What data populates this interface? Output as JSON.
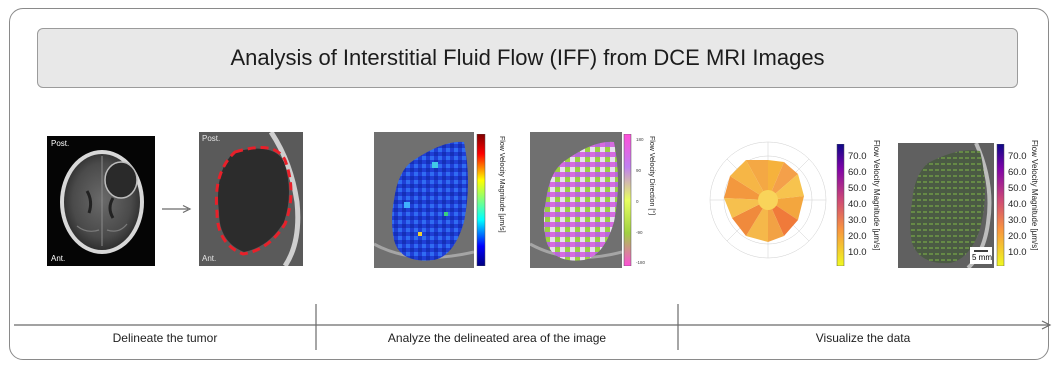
{
  "title": "Analysis of Interstitial Fluid Flow (IFF) from DCE MRI Images",
  "stages": [
    {
      "label": "Delineate the tumor"
    },
    {
      "label": "Analyze the delineated area of the image"
    },
    {
      "label": "Visualize the data"
    }
  ],
  "panels": {
    "mri": {
      "label_top": "Post.",
      "label_bottom": "Ant."
    },
    "zoom": {
      "label_top": "Post.",
      "label_bottom": "Ant."
    },
    "magnitude": {
      "colorbar_title": "Flow Velocity Magnitude [μm/s]"
    },
    "direction": {
      "colorbar_title": "Flow Velocity Direction [°]",
      "ticks": [
        "180",
        "90",
        "0",
        "-90",
        "-180"
      ]
    },
    "rose": {
      "colorbar_title": "Flow Velocity Magnitude [μm/s]",
      "ticks": [
        "70.0",
        "60.0",
        "50.0",
        "40.0",
        "30.0",
        "20.0",
        "10.0"
      ]
    },
    "overlay": {
      "colorbar_title": "Flow Velocity Magnitude [μm/s]",
      "ticks": [
        "70.0",
        "60.0",
        "50.0",
        "40.0",
        "30.0",
        "20.0",
        "10.0"
      ],
      "scalebar": "5 mm"
    }
  },
  "colors": {
    "delineation": "#e8202a",
    "arrow": "#6b6b6b",
    "frame": "#8a8a8a"
  }
}
